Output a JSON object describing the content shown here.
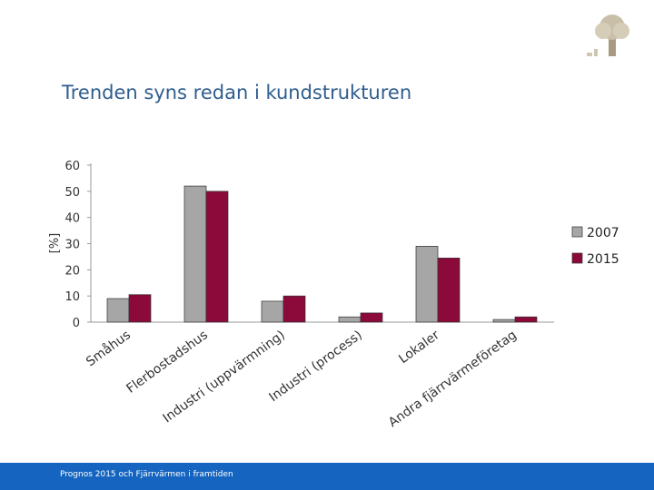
{
  "slide": {
    "title": "Trenden syns redan i kundstrukturen",
    "footer": "Prognos 2015 och Fjärrvärmen i framtiden"
  },
  "colors": {
    "accent": "#2e5d8e",
    "footer_bar": "#1565c0",
    "series_2007": "#a6a6a6",
    "series_2015": "#8b0a3a"
  },
  "chart_data": {
    "type": "bar",
    "title": "",
    "xlabel": "",
    "ylabel": "[%]",
    "ylim": [
      0,
      60
    ],
    "yticks": [
      0,
      10,
      20,
      30,
      40,
      50,
      60
    ],
    "categories": [
      "Småhus",
      "Flerbostadshus",
      "Industri (uppvärmning)",
      "Industri (process)",
      "Lokaler",
      "Andra fjärrvärmeföretag"
    ],
    "series": [
      {
        "name": "2007",
        "values": [
          9,
          52,
          8,
          2,
          29,
          1
        ]
      },
      {
        "name": "2015",
        "values": [
          10.5,
          50,
          10,
          3.5,
          24.5,
          2
        ]
      }
    ],
    "legend": "right"
  }
}
